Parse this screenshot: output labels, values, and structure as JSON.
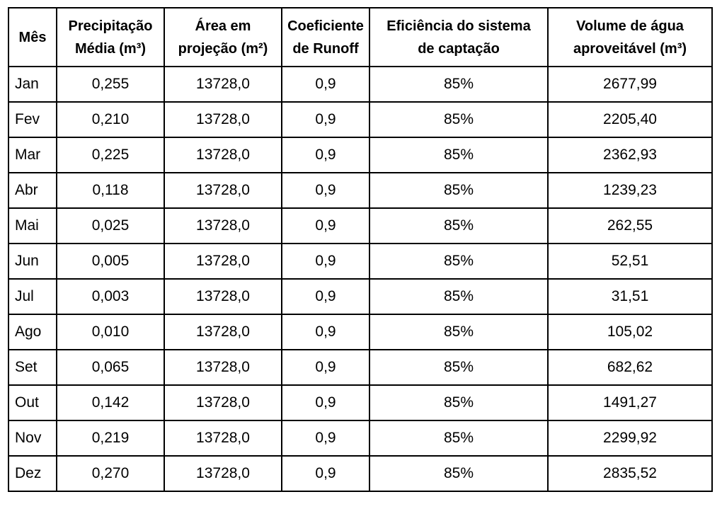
{
  "table": {
    "headers": [
      [
        "Mês"
      ],
      [
        "Precipitação",
        "Média (m³)"
      ],
      [
        "Área em",
        "projeção (m²)"
      ],
      [
        "Coeficiente",
        "de Runoff"
      ],
      [
        "Eficiência do sistema",
        "de captação"
      ],
      [
        "Volume de água",
        "aproveitável (m³)"
      ]
    ],
    "rows": [
      [
        "Jan",
        "0,255",
        "13728,0",
        "0,9",
        "85%",
        "2677,99"
      ],
      [
        "Fev",
        "0,210",
        "13728,0",
        "0,9",
        "85%",
        "2205,40"
      ],
      [
        "Mar",
        "0,225",
        "13728,0",
        "0,9",
        "85%",
        "2362,93"
      ],
      [
        "Abr",
        "0,118",
        "13728,0",
        "0,9",
        "85%",
        "1239,23"
      ],
      [
        "Mai",
        "0,025",
        "13728,0",
        "0,9",
        "85%",
        "262,55"
      ],
      [
        "Jun",
        "0,005",
        "13728,0",
        "0,9",
        "85%",
        "52,51"
      ],
      [
        "Jul",
        "0,003",
        "13728,0",
        "0,9",
        "85%",
        "31,51"
      ],
      [
        "Ago",
        "0,010",
        "13728,0",
        "0,9",
        "85%",
        "105,02"
      ],
      [
        "Set",
        "0,065",
        "13728,0",
        "0,9",
        "85%",
        "682,62"
      ],
      [
        "Out",
        "0,142",
        "13728,0",
        "0,9",
        "85%",
        "1491,27"
      ],
      [
        "Nov",
        "0,219",
        "13728,0",
        "0,9",
        "85%",
        "2299,92"
      ],
      [
        "Dez",
        "0,270",
        "13728,0",
        "0,9",
        "85%",
        "2835,52"
      ]
    ]
  }
}
